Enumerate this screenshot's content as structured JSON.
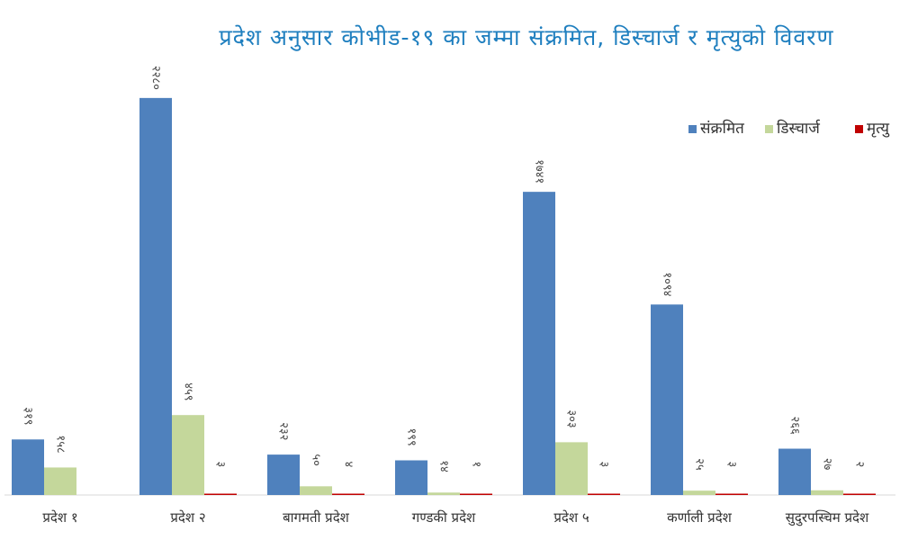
{
  "chart_data": {
    "type": "bar",
    "title": "प्रदेश अनुसार कोभीड-१९ का जम्मा संक्रमित, डिस्चार्ज र मृत्युको विवरण",
    "categories": [
      "प्रदेश १",
      "प्रदेश २",
      "बागमती प्रदेश",
      "गण्डकी प्रदेश",
      "प्रदेश ५",
      "कर्णाली प्रदेश",
      "सुदुरपस्चिम प्रदेश"
    ],
    "series": [
      {
        "name": "संक्रमित",
        "color": "#4f81bd",
        "values": [
          319,
          2280,
          232,
          199,
          1741,
          1094,
          266
        ],
        "labels": [
          "३१९",
          "२२८०",
          "२३२",
          "१९९",
          "१७४१",
          "१०९४",
          "२६६"
        ]
      },
      {
        "name": "डिस्चार्ज",
        "color": "#c4d79b",
        "values": [
          158,
          459,
          50,
          14,
          303,
          25,
          27
        ],
        "labels": [
          "१५८",
          "४५९",
          "५०",
          "१४",
          "३०३",
          "२५",
          "२७"
        ]
      },
      {
        "name": "मृत्यु",
        "color": "#c00000",
        "values": [
          0,
          3,
          4,
          1,
          3,
          3,
          2
        ],
        "labels": [
          "",
          "३",
          "४",
          "१",
          "३",
          "३",
          "२"
        ]
      }
    ],
    "ylim": [
      0,
      2300
    ],
    "legend_position": "top-right",
    "grid": false
  }
}
